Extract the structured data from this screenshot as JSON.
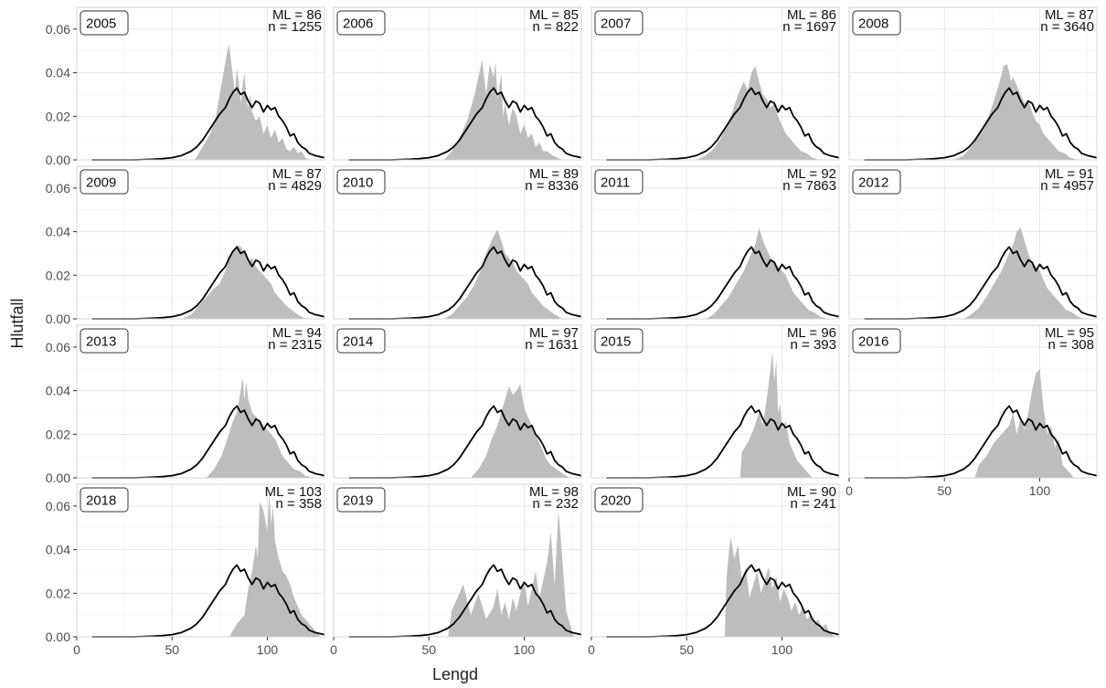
{
  "figure": {
    "xlabel": "Lengd",
    "ylabel": "Hlutfall"
  },
  "chart_data": {
    "type": "area",
    "layout": "facet-grid-4-columns",
    "xlim": [
      0,
      130
    ],
    "ylim": [
      0,
      0.07
    ],
    "x_ticks": [
      0,
      50,
      100
    ],
    "y_ticks": [
      0.0,
      0.02,
      0.04,
      0.06
    ],
    "y_tick_labels": [
      "0.00",
      "0.02",
      "0.04",
      "0.06"
    ],
    "grid": true,
    "colors": {
      "fill": "#bdbdbd",
      "line": "#000000",
      "panel_border": "#d4d4d4",
      "grid_major": "#e6e6e6",
      "grid_minor": "#f3f3f3"
    },
    "reference_line": {
      "x": [
        8,
        20,
        30,
        40,
        45,
        50,
        55,
        60,
        63,
        66,
        69,
        72,
        75,
        78,
        80,
        82,
        84,
        86,
        88,
        90,
        92,
        94,
        96,
        98,
        100,
        102,
        104,
        106,
        108,
        110,
        112,
        114,
        116,
        118,
        120,
        122,
        125,
        130
      ],
      "y": [
        0,
        0,
        0,
        0.0003,
        0.0006,
        0.001,
        0.002,
        0.004,
        0.006,
        0.009,
        0.013,
        0.017,
        0.021,
        0.024,
        0.028,
        0.031,
        0.033,
        0.03,
        0.031,
        0.027,
        0.024,
        0.027,
        0.026,
        0.022,
        0.025,
        0.023,
        0.024,
        0.02,
        0.018,
        0.015,
        0.011,
        0.012,
        0.008,
        0.006,
        0.005,
        0.003,
        0.002,
        0.001
      ]
    },
    "panels": [
      {
        "year": "2005",
        "ml": "ML = 86",
        "n": "n = 1255",
        "x": [
          62,
          66,
          70,
          73,
          75,
          77,
          79,
          80,
          81,
          82,
          83,
          84,
          85,
          86,
          87,
          88,
          89,
          90,
          91,
          92,
          94,
          96,
          98,
          100,
          102,
          104,
          106,
          108,
          110,
          112,
          114,
          116,
          118,
          120,
          122
        ],
        "y": [
          0,
          0.006,
          0.012,
          0.02,
          0.03,
          0.04,
          0.05,
          0.053,
          0.045,
          0.038,
          0.03,
          0.042,
          0.036,
          0.026,
          0.034,
          0.04,
          0.028,
          0.024,
          0.03,
          0.022,
          0.018,
          0.02,
          0.012,
          0.016,
          0.01,
          0.014,
          0.008,
          0.01,
          0.005,
          0.004,
          0.006,
          0.003,
          0.004,
          0.001,
          0
        ]
      },
      {
        "year": "2006",
        "ml": "ML = 85",
        "n": "n = 822",
        "x": [
          58,
          62,
          66,
          70,
          72,
          74,
          76,
          78,
          80,
          82,
          84,
          85,
          86,
          87,
          88,
          89,
          90,
          92,
          94,
          96,
          98,
          100,
          102,
          104,
          106,
          108,
          110,
          112,
          115,
          120
        ],
        "y": [
          0,
          0.004,
          0.01,
          0.018,
          0.024,
          0.03,
          0.038,
          0.046,
          0.03,
          0.044,
          0.038,
          0.045,
          0.028,
          0.034,
          0.04,
          0.02,
          0.026,
          0.016,
          0.024,
          0.02,
          0.012,
          0.016,
          0.01,
          0.012,
          0.006,
          0.008,
          0.004,
          0.004,
          0.002,
          0
        ]
      },
      {
        "year": "2007",
        "ml": "ML = 86",
        "n": "n = 1697",
        "x": [
          55,
          60,
          64,
          68,
          71,
          74,
          77,
          80,
          82,
          84,
          86,
          88,
          90,
          92,
          94,
          96,
          98,
          100,
          102,
          104,
          106,
          108,
          110,
          113,
          116,
          120
        ],
        "y": [
          0,
          0.002,
          0.005,
          0.01,
          0.016,
          0.022,
          0.03,
          0.036,
          0.032,
          0.04,
          0.043,
          0.036,
          0.03,
          0.028,
          0.024,
          0.026,
          0.02,
          0.016,
          0.012,
          0.01,
          0.008,
          0.006,
          0.004,
          0.003,
          0.001,
          0
        ]
      },
      {
        "year": "2008",
        "ml": "ML = 87",
        "n": "n = 3640",
        "x": [
          55,
          60,
          64,
          68,
          71,
          74,
          77,
          79,
          81,
          83,
          84,
          85,
          86,
          88,
          90,
          92,
          94,
          96,
          98,
          100,
          102,
          104,
          106,
          108,
          110,
          113,
          116,
          120
        ],
        "y": [
          0,
          0.002,
          0.006,
          0.011,
          0.016,
          0.022,
          0.03,
          0.036,
          0.043,
          0.044,
          0.04,
          0.036,
          0.038,
          0.034,
          0.03,
          0.026,
          0.028,
          0.022,
          0.018,
          0.016,
          0.012,
          0.01,
          0.008,
          0.006,
          0.004,
          0.003,
          0.001,
          0
        ]
      },
      {
        "year": "2009",
        "ml": "ML = 87",
        "n": "n = 4829",
        "x": [
          55,
          60,
          64,
          68,
          72,
          75,
          78,
          80,
          82,
          84,
          86,
          88,
          90,
          92,
          94,
          96,
          98,
          100,
          102,
          104,
          106,
          108,
          110,
          113,
          116,
          120
        ],
        "y": [
          0,
          0.002,
          0.006,
          0.01,
          0.014,
          0.016,
          0.022,
          0.028,
          0.03,
          0.034,
          0.033,
          0.03,
          0.026,
          0.028,
          0.024,
          0.022,
          0.02,
          0.018,
          0.016,
          0.012,
          0.01,
          0.008,
          0.006,
          0.004,
          0.002,
          0
        ]
      },
      {
        "year": "2010",
        "ml": "ML = 89",
        "n": "n = 8336",
        "x": [
          58,
          62,
          66,
          70,
          74,
          78,
          80,
          82,
          84,
          86,
          88,
          90,
          92,
          94,
          96,
          98,
          100,
          102,
          104,
          106,
          108,
          110,
          113,
          116,
          120
        ],
        "y": [
          0,
          0.002,
          0.006,
          0.01,
          0.016,
          0.024,
          0.03,
          0.034,
          0.038,
          0.041,
          0.036,
          0.03,
          0.028,
          0.026,
          0.022,
          0.02,
          0.018,
          0.016,
          0.012,
          0.01,
          0.008,
          0.006,
          0.004,
          0.002,
          0
        ]
      },
      {
        "year": "2011",
        "ml": "ML = 92",
        "n": "n = 7863",
        "x": [
          60,
          64,
          68,
          72,
          76,
          80,
          82,
          84,
          86,
          88,
          90,
          92,
          94,
          96,
          98,
          100,
          102,
          104,
          106,
          108,
          110,
          112,
          114,
          117,
          120,
          124
        ],
        "y": [
          0,
          0.002,
          0.006,
          0.01,
          0.016,
          0.022,
          0.026,
          0.03,
          0.034,
          0.042,
          0.036,
          0.032,
          0.028,
          0.026,
          0.024,
          0.022,
          0.02,
          0.016,
          0.012,
          0.01,
          0.008,
          0.006,
          0.004,
          0.003,
          0.001,
          0
        ]
      },
      {
        "year": "2012",
        "ml": "ML = 91",
        "n": "n = 4957",
        "x": [
          60,
          64,
          68,
          72,
          76,
          80,
          82,
          84,
          86,
          88,
          90,
          92,
          94,
          96,
          98,
          100,
          102,
          104,
          106,
          108,
          110,
          112,
          114,
          117,
          120,
          124
        ],
        "y": [
          0,
          0.002,
          0.005,
          0.01,
          0.016,
          0.022,
          0.026,
          0.03,
          0.034,
          0.04,
          0.042,
          0.036,
          0.03,
          0.026,
          0.024,
          0.022,
          0.018,
          0.014,
          0.012,
          0.01,
          0.008,
          0.006,
          0.004,
          0.003,
          0.001,
          0
        ]
      },
      {
        "year": "2013",
        "ml": "ML = 94",
        "n": "n = 2315",
        "x": [
          68,
          72,
          76,
          79,
          82,
          84,
          86,
          87,
          88,
          89,
          90,
          92,
          94,
          96,
          98,
          100,
          102,
          104,
          106,
          108,
          110,
          112,
          114,
          117,
          120,
          124
        ],
        "y": [
          0,
          0.004,
          0.01,
          0.018,
          0.026,
          0.03,
          0.04,
          0.046,
          0.036,
          0.044,
          0.036,
          0.03,
          0.028,
          0.026,
          0.024,
          0.022,
          0.02,
          0.018,
          0.014,
          0.01,
          0.008,
          0.006,
          0.004,
          0.003,
          0.001,
          0
        ]
      },
      {
        "year": "2014",
        "ml": "ML = 97",
        "n": "n = 1631",
        "x": [
          72,
          76,
          80,
          83,
          86,
          88,
          90,
          92,
          94,
          96,
          98,
          100,
          102,
          104,
          106,
          108,
          110,
          112,
          114,
          117,
          120,
          124
        ],
        "y": [
          0,
          0.004,
          0.01,
          0.018,
          0.024,
          0.03,
          0.036,
          0.042,
          0.038,
          0.04,
          0.043,
          0.032,
          0.028,
          0.024,
          0.02,
          0.016,
          0.012,
          0.008,
          0.006,
          0.004,
          0.002,
          0
        ]
      },
      {
        "year": "2015",
        "ml": "ML = 96",
        "n": "n = 393",
        "x": [
          78,
          79,
          82,
          85,
          88,
          90,
          92,
          94,
          95,
          96,
          97,
          98,
          99,
          100,
          102,
          104,
          106,
          108,
          110,
          112,
          114,
          116
        ],
        "y": [
          0,
          0.012,
          0.016,
          0.022,
          0.03,
          0.024,
          0.036,
          0.05,
          0.058,
          0.044,
          0.054,
          0.03,
          0.034,
          0.022,
          0.026,
          0.016,
          0.012,
          0.008,
          0.006,
          0.004,
          0.002,
          0
        ]
      },
      {
        "year": "2016",
        "ml": "ML = 95",
        "n": "n = 308",
        "x": [
          66,
          68,
          72,
          76,
          80,
          84,
          86,
          88,
          90,
          92,
          94,
          96,
          98,
          100,
          102,
          104,
          106,
          108,
          110,
          112,
          114,
          116,
          118
        ],
        "y": [
          0,
          0.006,
          0.01,
          0.016,
          0.02,
          0.024,
          0.03,
          0.02,
          0.028,
          0.022,
          0.03,
          0.04,
          0.048,
          0.05,
          0.032,
          0.02,
          0.024,
          0.014,
          0.018,
          0.006,
          0.004,
          0.002,
          0
        ]
      },
      {
        "year": "2018",
        "ml": "ML = 103",
        "n": "n = 358",
        "x": [
          80,
          84,
          88,
          90,
          92,
          94,
          95,
          96,
          98,
          100,
          101,
          102,
          103,
          104,
          106,
          108,
          110,
          112,
          114,
          116,
          118,
          120,
          122,
          124,
          126,
          128
        ],
        "y": [
          0,
          0.006,
          0.01,
          0.022,
          0.03,
          0.042,
          0.036,
          0.062,
          0.058,
          0.048,
          0.066,
          0.052,
          0.06,
          0.044,
          0.036,
          0.03,
          0.028,
          0.024,
          0.018,
          0.014,
          0.01,
          0.008,
          0.006,
          0.004,
          0.002,
          0
        ]
      },
      {
        "year": "2019",
        "ml": "ML = 98",
        "n": "n = 232",
        "x": [
          60,
          62,
          64,
          68,
          72,
          76,
          80,
          84,
          86,
          88,
          90,
          92,
          94,
          96,
          98,
          100,
          102,
          104,
          106,
          108,
          110,
          112,
          114,
          116,
          118,
          120,
          122,
          124,
          126
        ],
        "y": [
          0,
          0.012,
          0.016,
          0.024,
          0.01,
          0.02,
          0.008,
          0.014,
          0.022,
          0.01,
          0.016,
          0.008,
          0.018,
          0.012,
          0.02,
          0.026,
          0.014,
          0.022,
          0.03,
          0.018,
          0.026,
          0.034,
          0.048,
          0.024,
          0.058,
          0.036,
          0.012,
          0.006,
          0
        ]
      },
      {
        "year": "2020",
        "ml": "ML = 90",
        "n": "n = 241",
        "x": [
          70,
          71,
          73,
          75,
          77,
          79,
          81,
          83,
          85,
          87,
          89,
          91,
          93,
          95,
          97,
          99,
          101,
          103,
          105,
          107,
          109,
          111,
          113,
          115,
          117,
          119,
          121,
          123,
          125,
          128
        ],
        "y": [
          0,
          0.028,
          0.046,
          0.036,
          0.042,
          0.026,
          0.032,
          0.018,
          0.024,
          0.03,
          0.02,
          0.026,
          0.032,
          0.022,
          0.028,
          0.016,
          0.022,
          0.018,
          0.012,
          0.016,
          0.01,
          0.014,
          0.008,
          0.01,
          0.006,
          0.008,
          0.004,
          0.006,
          0.002,
          0
        ]
      }
    ]
  }
}
